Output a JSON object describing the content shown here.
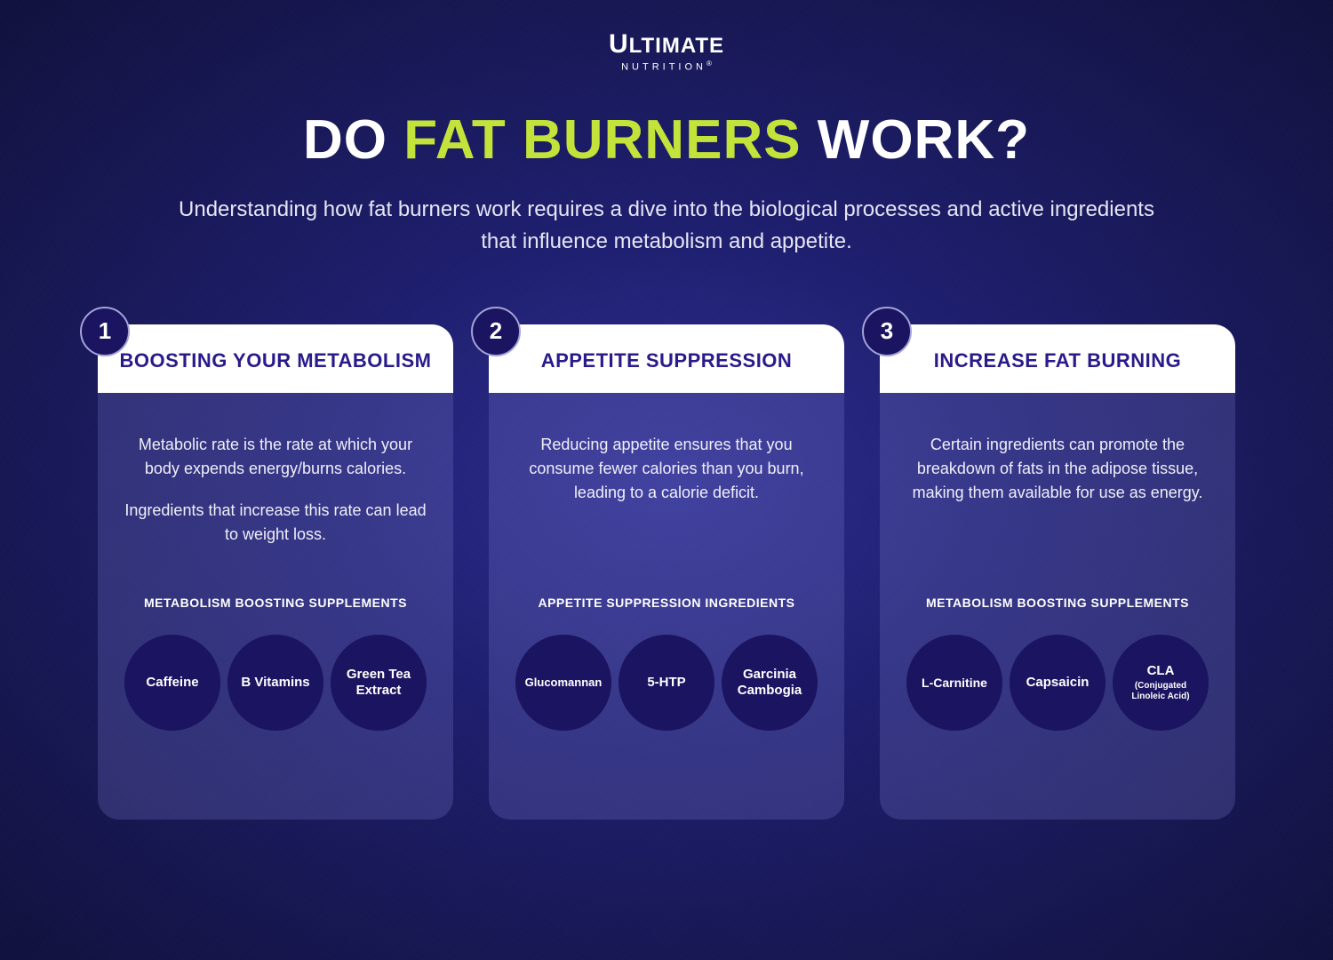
{
  "logo": {
    "top_left_cap": "U",
    "top_rest": "LTIMATE",
    "bottom": "NUTRITION"
  },
  "title": {
    "pre": "DO ",
    "accent": "FAT BURNERS",
    "post": " WORK?"
  },
  "subtitle": "Understanding how fat burners work requires a dive into the biological processes and active ingredients that influence metabolism and appetite.",
  "cards": [
    {
      "num": "1",
      "title": "BOOSTING YOUR METABOLISM",
      "desc1": "Metabolic rate is the rate at which your body expends energy/burns calories.",
      "desc2": "Ingredients that increase this rate can lead to weight loss.",
      "section": "METABOLISM BOOSTING SUPPLEMENTS",
      "pills": [
        {
          "main": "Caffeine",
          "sub": ""
        },
        {
          "main": "B Vitamins",
          "sub": ""
        },
        {
          "main": "Green Tea Extract",
          "sub": ""
        }
      ]
    },
    {
      "num": "2",
      "title": "APPETITE SUPPRESSION",
      "desc1": "Reducing appetite ensures that you consume fewer calories than you burn, leading to a calorie deficit.",
      "desc2": "",
      "section": "APPETITE SUPPRESSION INGREDIENTS",
      "pills": [
        {
          "main": "Glucomannan",
          "sub": ""
        },
        {
          "main": "5-HTP",
          "sub": ""
        },
        {
          "main": "Garcinia Cambogia",
          "sub": ""
        }
      ]
    },
    {
      "num": "3",
      "title": "INCREASE FAT BURNING",
      "desc1": "Certain ingredients can promote the breakdown of fats in the adipose tissue, making them available for use as energy.",
      "desc2": "",
      "section": "METABOLISM BOOSTING SUPPLEMENTS",
      "pills": [
        {
          "main": "L-Carnitine",
          "sub": ""
        },
        {
          "main": "Capsaicin",
          "sub": ""
        },
        {
          "main": "CLA",
          "sub": "(Conjugated Linoleic Acid)"
        }
      ]
    }
  ],
  "colors": {
    "accent_text": "#c3e23a",
    "card_title": "#2a1a8a",
    "pill_bg": "#1b1460"
  }
}
